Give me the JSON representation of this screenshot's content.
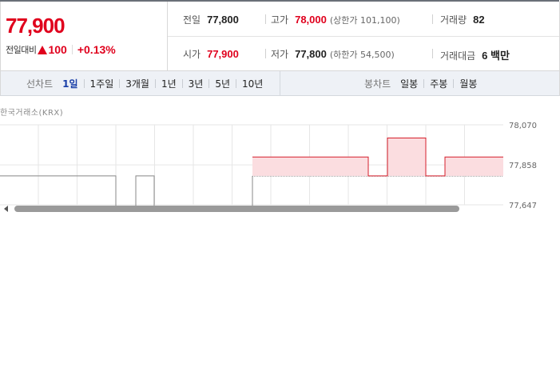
{
  "quote": {
    "price": "77,900",
    "change_label": "전일대비",
    "change_value": "100",
    "change_rate": "+0.13%"
  },
  "stats": {
    "prev_close": {
      "label": "전일",
      "value": "77,800"
    },
    "high": {
      "label": "고가",
      "value": "78,000",
      "limit": "(상한가 101,100)"
    },
    "volume": {
      "label": "거래량",
      "value": "82"
    },
    "open": {
      "label": "시가",
      "value": "77,900"
    },
    "low": {
      "label": "저가",
      "value": "77,800",
      "limit": "(하한가 54,500)"
    },
    "amount": {
      "label": "거래대금",
      "value": "6 백만"
    }
  },
  "line_tabs": {
    "label": "선차트",
    "items": [
      "1일",
      "1주일",
      "3개월",
      "1년",
      "3년",
      "5년",
      "10년"
    ],
    "active": "1일"
  },
  "candle_tabs": {
    "label": "봉차트",
    "items": [
      "일봉",
      "주봉",
      "월봉"
    ]
  },
  "chart": {
    "exchange": "한국거래소(KRX)"
  },
  "chart_data": {
    "type": "line",
    "y_tick_labels": [
      "78,070",
      "77,858",
      "77,647"
    ],
    "ylim": [
      77647,
      78070
    ],
    "reference_line": 77800,
    "segments": [
      {
        "color": "#888888",
        "points": [
          [
            0,
            77800
          ],
          [
            145,
            77800
          ],
          [
            145,
            77640
          ]
        ]
      },
      {
        "color": "#888888",
        "points": [
          [
            170,
            77640
          ],
          [
            170,
            77800
          ],
          [
            193,
            77800
          ],
          [
            193,
            77640
          ]
        ]
      },
      {
        "color": "#888888",
        "points": [
          [
            316,
            77640
          ],
          [
            316,
            77800
          ]
        ]
      },
      {
        "color": "#d61f2b",
        "points": [
          [
            316,
            77900
          ],
          [
            461,
            77900
          ],
          [
            461,
            77800
          ],
          [
            485,
            77800
          ],
          [
            485,
            78000
          ],
          [
            533,
            78000
          ],
          [
            533,
            77800
          ],
          [
            557,
            77800
          ],
          [
            557,
            77900
          ],
          [
            630,
            77900
          ]
        ]
      }
    ],
    "colors": {
      "up": "#d61f2b",
      "fill": "#fbdde0",
      "grid": "#e6e6e6",
      "base": "#888888"
    }
  }
}
